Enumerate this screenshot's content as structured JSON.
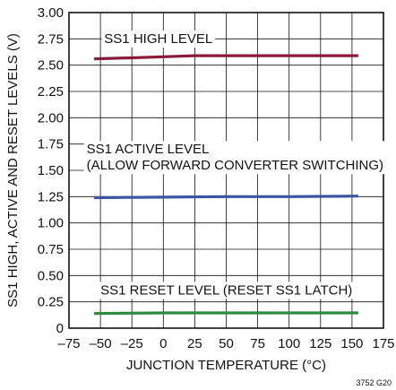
{
  "chart_data": {
    "type": "line",
    "xlabel": "JUNCTION TEMPERATURE (°C)",
    "ylabel": "SS1 HIGH, ACTIVE AND RESET LEVELS (V)",
    "xlim": [
      -75,
      175
    ],
    "ylim": [
      0,
      3.0
    ],
    "x_ticks": [
      -75,
      -50,
      -25,
      0,
      25,
      50,
      75,
      100,
      125,
      150,
      175
    ],
    "x_tick_labels": [
      "–75",
      "–50",
      "–25",
      "0",
      "25",
      "50",
      "75",
      "100",
      "125",
      "150",
      "175"
    ],
    "y_ticks": [
      0,
      0.25,
      0.5,
      0.75,
      1.0,
      1.25,
      1.5,
      1.75,
      2.0,
      2.25,
      2.5,
      2.75,
      3.0
    ],
    "y_tick_labels": [
      "0",
      "0.25",
      "0.50",
      "0.75",
      "1.00",
      "1.25",
      "1.50",
      "1.75",
      "2.00",
      "2.25",
      "2.50",
      "2.75",
      "3.00"
    ],
    "grid": true,
    "series": [
      {
        "color": "#8b1a3a",
        "x": [
          -55,
          -25,
          0,
          25,
          50,
          75,
          100,
          125,
          155
        ],
        "y": [
          2.56,
          2.57,
          2.58,
          2.59,
          2.59,
          2.59,
          2.59,
          2.59,
          2.59
        ]
      },
      {
        "color": "#3b55a5",
        "x": [
          -55,
          0,
          50,
          100,
          155
        ],
        "y": [
          1.24,
          1.245,
          1.25,
          1.25,
          1.255
        ]
      },
      {
        "color": "#2e8b3e",
        "x": [
          -55,
          0,
          50,
          100,
          155
        ],
        "y": [
          0.14,
          0.145,
          0.145,
          0.145,
          0.145
        ]
      }
    ],
    "annotations": [
      {
        "lines": [
          "SS1 HIGH LEVEL"
        ],
        "anchor_x": -47,
        "anchor_y": 2.71
      },
      {
        "lines": [
          "SS1 ACTIVE LEVEL",
          "(ALLOW FORWARD CONVERTER SWITCHING)"
        ],
        "anchor_x": -61,
        "anchor_y": 1.66
      },
      {
        "lines": [
          "SS1 RESET LEVEL (RESET SS1 LATCH)"
        ],
        "anchor_x": -50,
        "anchor_y": 0.32
      }
    ],
    "figure_id": "3752 G20"
  }
}
